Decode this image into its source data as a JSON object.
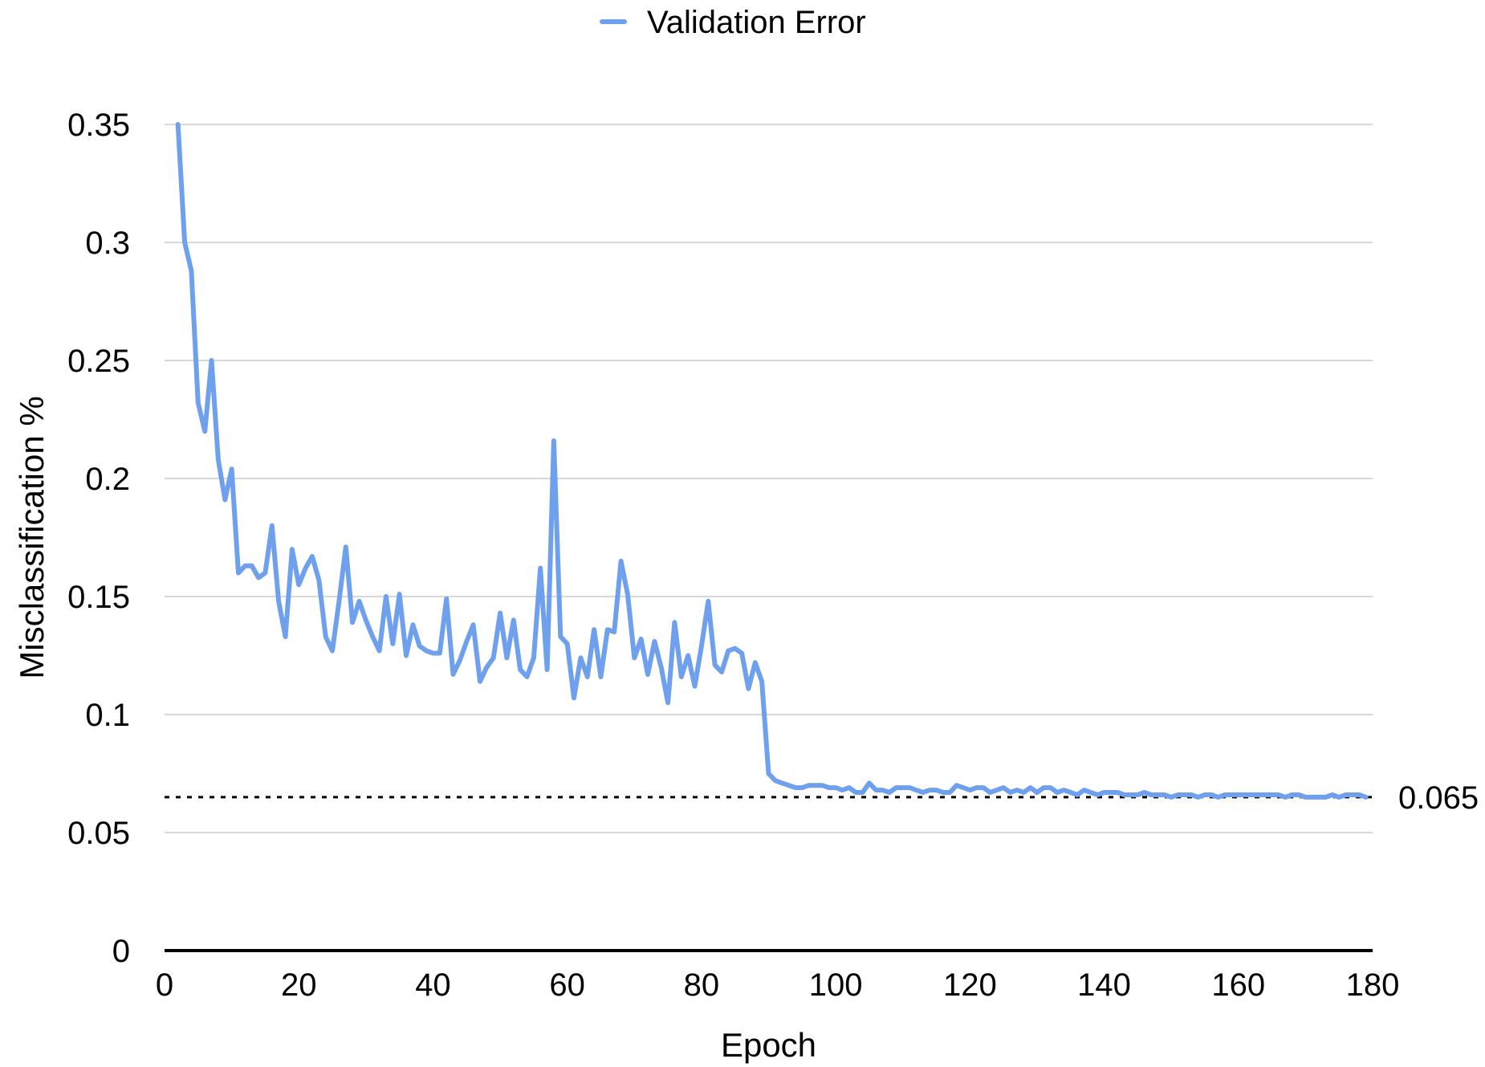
{
  "chart_data": {
    "type": "line",
    "title": "",
    "xlabel": "Epoch",
    "ylabel": "Misclassification %",
    "xlim": [
      0,
      180
    ],
    "ylim": [
      0,
      0.35
    ],
    "xticks": [
      0,
      20,
      40,
      60,
      80,
      100,
      120,
      140,
      160,
      180
    ],
    "xtick_labels": [
      "0",
      "20",
      "40",
      "60",
      "80",
      "100",
      "120",
      "140",
      "160",
      "180"
    ],
    "yticks": [
      0,
      0.05,
      0.1,
      0.15,
      0.2,
      0.25,
      0.3,
      0.35
    ],
    "ytick_labels": [
      "0",
      "0.05",
      "0.1",
      "0.15",
      "0.2",
      "0.25",
      "0.3",
      "0.35"
    ],
    "grid": "horizontal",
    "legend": {
      "position": "top-center"
    },
    "reference_line": {
      "value": 0.065,
      "label": "0.065",
      "style": "dotted",
      "color": "#000000"
    },
    "series": [
      {
        "name": "Validation Error",
        "color": "#6fa0ee",
        "x": [
          2,
          3,
          4,
          5,
          6,
          7,
          8,
          9,
          10,
          11,
          12,
          13,
          14,
          15,
          16,
          17,
          18,
          19,
          20,
          21,
          22,
          23,
          24,
          25,
          26,
          27,
          28,
          29,
          30,
          31,
          32,
          33,
          34,
          35,
          36,
          37,
          38,
          39,
          40,
          41,
          42,
          43,
          44,
          45,
          46,
          47,
          48,
          49,
          50,
          51,
          52,
          53,
          54,
          55,
          56,
          57,
          58,
          59,
          60,
          61,
          62,
          63,
          64,
          65,
          66,
          67,
          68,
          69,
          70,
          71,
          72,
          73,
          74,
          75,
          76,
          77,
          78,
          79,
          80,
          81,
          82,
          83,
          84,
          85,
          86,
          87,
          88,
          89,
          90,
          91,
          92,
          93,
          94,
          95,
          96,
          97,
          98,
          99,
          100,
          101,
          102,
          103,
          104,
          105,
          106,
          107,
          108,
          109,
          110,
          111,
          112,
          113,
          114,
          115,
          116,
          117,
          118,
          119,
          120,
          121,
          122,
          123,
          124,
          125,
          126,
          127,
          128,
          129,
          130,
          131,
          132,
          133,
          134,
          135,
          136,
          137,
          138,
          139,
          140,
          141,
          142,
          143,
          144,
          145,
          146,
          147,
          148,
          149,
          150,
          151,
          152,
          153,
          154,
          155,
          156,
          157,
          158,
          159,
          160,
          161,
          162,
          163,
          164,
          165,
          166,
          167,
          168,
          169,
          170,
          171,
          172,
          173,
          174,
          175,
          176,
          177,
          178,
          179
        ],
        "values": [
          0.35,
          0.3,
          0.288,
          0.232,
          0.22,
          0.25,
          0.208,
          0.191,
          0.204,
          0.16,
          0.163,
          0.163,
          0.158,
          0.16,
          0.18,
          0.148,
          0.133,
          0.17,
          0.155,
          0.162,
          0.167,
          0.157,
          0.133,
          0.127,
          0.148,
          0.171,
          0.139,
          0.148,
          0.14,
          0.133,
          0.127,
          0.15,
          0.13,
          0.151,
          0.125,
          0.138,
          0.129,
          0.127,
          0.126,
          0.126,
          0.149,
          0.117,
          0.123,
          0.131,
          0.138,
          0.114,
          0.12,
          0.124,
          0.143,
          0.124,
          0.14,
          0.119,
          0.116,
          0.124,
          0.162,
          0.119,
          0.216,
          0.133,
          0.13,
          0.107,
          0.124,
          0.116,
          0.136,
          0.116,
          0.136,
          0.135,
          0.165,
          0.151,
          0.124,
          0.132,
          0.117,
          0.131,
          0.12,
          0.105,
          0.139,
          0.116,
          0.125,
          0.112,
          0.129,
          0.148,
          0.121,
          0.118,
          0.127,
          0.128,
          0.126,
          0.111,
          0.122,
          0.114,
          0.075,
          0.072,
          0.071,
          0.07,
          0.069,
          0.069,
          0.07,
          0.07,
          0.07,
          0.069,
          0.069,
          0.068,
          0.069,
          0.067,
          0.067,
          0.071,
          0.068,
          0.068,
          0.067,
          0.069,
          0.069,
          0.069,
          0.068,
          0.067,
          0.068,
          0.068,
          0.067,
          0.067,
          0.07,
          0.069,
          0.068,
          0.069,
          0.069,
          0.067,
          0.068,
          0.069,
          0.067,
          0.068,
          0.067,
          0.069,
          0.067,
          0.069,
          0.069,
          0.067,
          0.068,
          0.067,
          0.066,
          0.068,
          0.067,
          0.066,
          0.067,
          0.067,
          0.067,
          0.066,
          0.066,
          0.066,
          0.067,
          0.066,
          0.066,
          0.066,
          0.065,
          0.066,
          0.066,
          0.066,
          0.065,
          0.066,
          0.066,
          0.065,
          0.066,
          0.066,
          0.066,
          0.066,
          0.066,
          0.066,
          0.066,
          0.066,
          0.066,
          0.065,
          0.066,
          0.066,
          0.065,
          0.065,
          0.065,
          0.065,
          0.066,
          0.065,
          0.066,
          0.066,
          0.066,
          0.065
        ]
      }
    ]
  }
}
